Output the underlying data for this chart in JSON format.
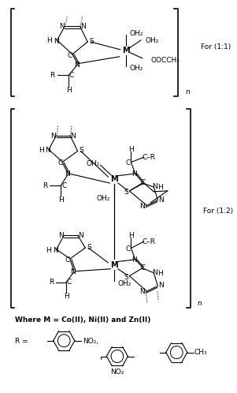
{
  "background_color": "#ffffff",
  "figure_width": 3.08,
  "figure_height": 5.0,
  "dpi": 100,
  "for11_label": "For (1:1)",
  "for12_label": "For (1:2)",
  "where_label": "Where M = Co(II), Ni(II) and Zn(II)",
  "r_label": "R =",
  "no2_1": "NO₂,",
  "no2_2": "NO₂",
  "ch3": "CH₃",
  "oocch3": "OOCCH₃",
  "oh2": "OH₂",
  "n_label": "n"
}
